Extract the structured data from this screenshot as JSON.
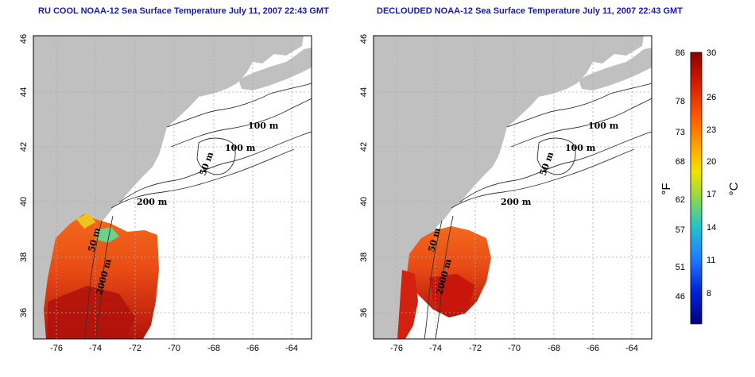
{
  "panels": [
    {
      "id": "left",
      "title": "RU COOL NOAA-12 Sea Surface Temperature July 11, 2007 22:43 GMT",
      "contour_labels": [
        "100 m",
        "100 m",
        "50 m",
        "200 m",
        "50 m",
        "2000 m"
      ]
    },
    {
      "id": "right",
      "title": "DECLOUDED NOAA-12 Sea Surface Temperature July 11, 2007 22:43 GMT",
      "contour_labels": [
        "100 m",
        "100 m",
        "50 m",
        "200 m",
        "50 m",
        "2000 m"
      ]
    }
  ],
  "axes": {
    "x_ticks": [
      "-76",
      "-74",
      "-72",
      "-70",
      "-68",
      "-66",
      "-64"
    ],
    "y_ticks": [
      "36",
      "38",
      "40",
      "42",
      "44",
      "46"
    ]
  },
  "colorbar": {
    "fahrenheit_unit": "°F",
    "celsius_unit": "°C",
    "fahrenheit_ticks": [
      "86",
      "78",
      "73",
      "68",
      "62",
      "57",
      "51",
      "46"
    ],
    "celsius_ticks": [
      "30",
      "26",
      "23",
      "20",
      "17",
      "14",
      "11",
      "8"
    ],
    "colors": [
      "#8b0000",
      "#e02000",
      "#ff6a00",
      "#ffa500",
      "#f5e000",
      "#7fd84a",
      "#20c0d0",
      "#2080ff",
      "#0020d0",
      "#000080"
    ]
  },
  "colors": {
    "land": "#c0c0c0",
    "ocean": "#ffffff",
    "title": "#1a1aa0"
  }
}
